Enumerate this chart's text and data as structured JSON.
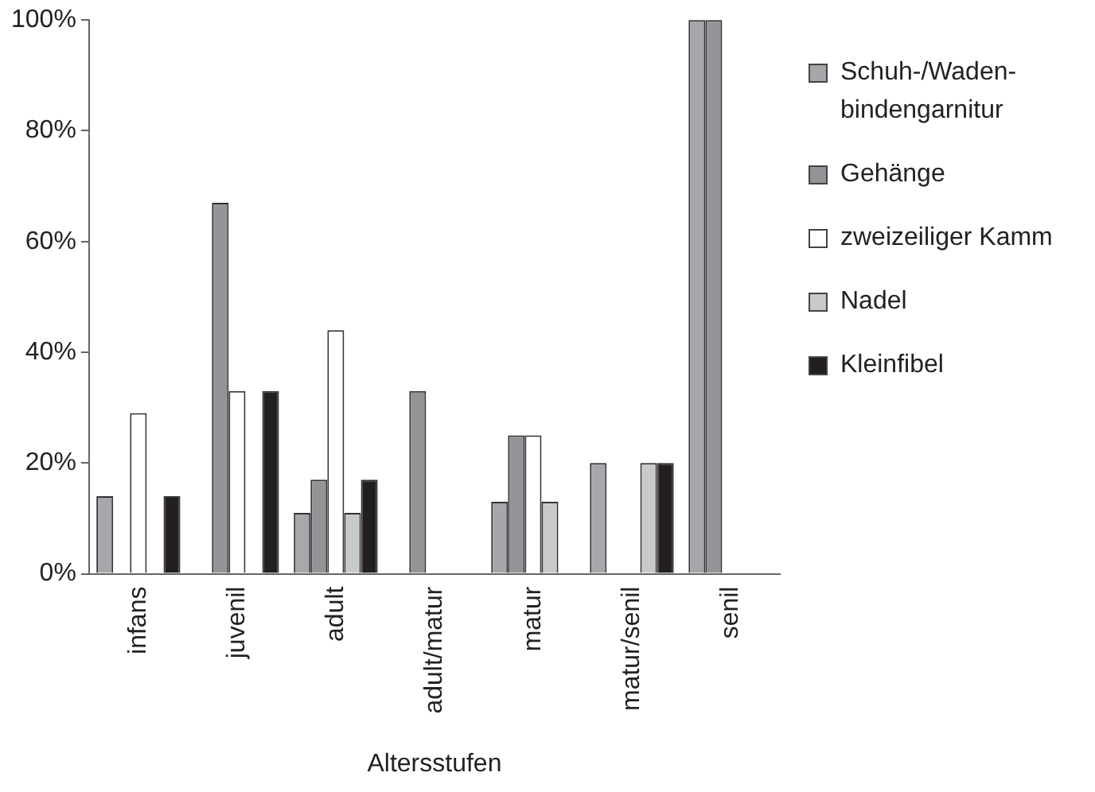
{
  "chart_data": {
    "type": "bar",
    "xlabel": "Altersstufen",
    "categories": [
      "infans",
      "juvenil",
      "adult",
      "adult/matur",
      "matur",
      "matur/senil",
      "senil"
    ],
    "series": [
      {
        "name": "Schuh-/Waden-bindengarnitur",
        "color": "#a6a7aa",
        "values": [
          14,
          0,
          11,
          0,
          13,
          20,
          100
        ]
      },
      {
        "name": "Gehänge",
        "color": "#939497",
        "values": [
          0,
          67,
          17,
          33,
          25,
          0,
          100
        ]
      },
      {
        "name": "zweizeiliger Kamm",
        "color": "#ffffff",
        "values": [
          29,
          33,
          44,
          0,
          25,
          0,
          0
        ]
      },
      {
        "name": "Nadel",
        "color": "#c8c9cb",
        "values": [
          0,
          0,
          11,
          0,
          13,
          20,
          0
        ]
      },
      {
        "name": "Kleinfibel",
        "color": "#231f20",
        "values": [
          14,
          33,
          17,
          0,
          0,
          20,
          0
        ]
      }
    ],
    "ylim": [
      0,
      100
    ],
    "yticks": [
      {
        "value": 0,
        "label": "0%"
      },
      {
        "value": 20,
        "label": "20%"
      },
      {
        "value": 40,
        "label": "40%"
      },
      {
        "value": 60,
        "label": "60%"
      },
      {
        "value": 80,
        "label": "80%"
      },
      {
        "value": 100,
        "label": "100%"
      }
    ],
    "grid": false,
    "legend": "right"
  }
}
